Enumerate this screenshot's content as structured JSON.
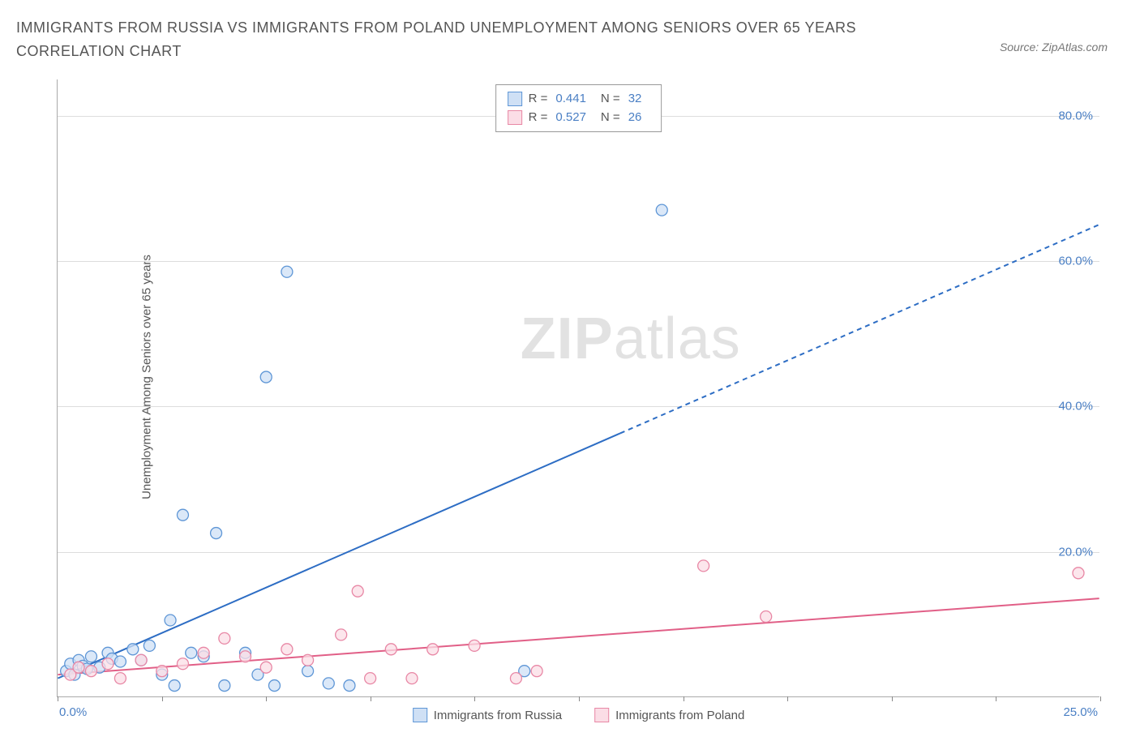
{
  "title": "IMMIGRANTS FROM RUSSIA VS IMMIGRANTS FROM POLAND UNEMPLOYMENT AMONG SENIORS OVER 65 YEARS CORRELATION CHART",
  "source_label": "Source: ZipAtlas.com",
  "y_axis_label": "Unemployment Among Seniors over 65 years",
  "watermark_bold": "ZIP",
  "watermark_rest": "atlas",
  "chart": {
    "type": "scatter",
    "xlim": [
      0,
      25
    ],
    "ylim": [
      0,
      85
    ],
    "x_tick_positions": [
      0,
      2.5,
      5,
      7.5,
      10,
      12.5,
      15,
      17.5,
      20,
      22.5,
      25
    ],
    "x_tick_labels": {
      "0": "0.0%",
      "25": "25.0%"
    },
    "y_grid_positions": [
      20,
      40,
      60,
      80
    ],
    "y_tick_labels": {
      "20": "20.0%",
      "40": "40.0%",
      "60": "60.0%",
      "80": "80.0%"
    },
    "background_color": "#ffffff",
    "grid_color": "#dddddd",
    "axis_color": "#aaaaaa",
    "tick_label_color": "#4a7fc4",
    "marker_radius": 7,
    "marker_stroke_width": 1.3,
    "line_width": 2,
    "dash_pattern": "6,5",
    "series": [
      {
        "name": "Immigrants from Russia",
        "legend_label": "Immigrants from Russia",
        "r_label": "R =",
        "r_value": "0.441",
        "n_label": "N =",
        "n_value": "32",
        "fill": "#cfe0f5",
        "stroke": "#5e96d6",
        "line_color": "#2d6dc4",
        "trend": {
          "x1": 0,
          "y1": 2.5,
          "x2": 25,
          "y2": 65,
          "dash_from_x": 13.5
        },
        "points": [
          [
            0.2,
            3.5
          ],
          [
            0.3,
            4.5
          ],
          [
            0.4,
            3.0
          ],
          [
            0.5,
            5.0
          ],
          [
            0.6,
            4.2
          ],
          [
            0.7,
            3.8
          ],
          [
            0.8,
            5.5
          ],
          [
            1.0,
            4.0
          ],
          [
            1.2,
            6.0
          ],
          [
            1.3,
            5.2
          ],
          [
            1.5,
            4.8
          ],
          [
            1.8,
            6.5
          ],
          [
            2.0,
            5.0
          ],
          [
            2.2,
            7.0
          ],
          [
            2.5,
            3.0
          ],
          [
            2.7,
            10.5
          ],
          [
            2.8,
            1.5
          ],
          [
            3.0,
            25.0
          ],
          [
            3.2,
            6.0
          ],
          [
            3.5,
            5.5
          ],
          [
            3.8,
            22.5
          ],
          [
            4.0,
            1.5
          ],
          [
            4.5,
            6.0
          ],
          [
            4.8,
            3.0
          ],
          [
            5.0,
            44.0
          ],
          [
            5.2,
            1.5
          ],
          [
            5.5,
            58.5
          ],
          [
            6.0,
            3.5
          ],
          [
            6.5,
            1.8
          ],
          [
            7.0,
            1.5
          ],
          [
            11.2,
            3.5
          ],
          [
            14.5,
            67.0
          ]
        ]
      },
      {
        "name": "Immigrants from Poland",
        "legend_label": "Immigrants from Poland",
        "r_label": "R =",
        "r_value": "0.527",
        "n_label": "N =",
        "n_value": "26",
        "fill": "#fbdde6",
        "stroke": "#e887a5",
        "line_color": "#e15f87",
        "trend": {
          "x1": 0,
          "y1": 3.0,
          "x2": 25,
          "y2": 13.5,
          "dash_from_x": 25
        },
        "points": [
          [
            0.3,
            3.0
          ],
          [
            0.5,
            4.0
          ],
          [
            0.8,
            3.5
          ],
          [
            1.2,
            4.5
          ],
          [
            1.5,
            2.5
          ],
          [
            2.0,
            5.0
          ],
          [
            2.5,
            3.5
          ],
          [
            3.0,
            4.5
          ],
          [
            3.5,
            6.0
          ],
          [
            4.0,
            8.0
          ],
          [
            4.5,
            5.5
          ],
          [
            5.0,
            4.0
          ],
          [
            5.5,
            6.5
          ],
          [
            6.0,
            5.0
          ],
          [
            6.8,
            8.5
          ],
          [
            7.2,
            14.5
          ],
          [
            7.5,
            2.5
          ],
          [
            8.0,
            6.5
          ],
          [
            8.5,
            2.5
          ],
          [
            9.0,
            6.5
          ],
          [
            10.0,
            7.0
          ],
          [
            11.0,
            2.5
          ],
          [
            11.5,
            3.5
          ],
          [
            15.5,
            18.0
          ],
          [
            17.0,
            11.0
          ],
          [
            24.5,
            17.0
          ]
        ]
      }
    ]
  },
  "bottom_legend": [
    {
      "label": "Immigrants from Russia",
      "fill": "#cfe0f5",
      "stroke": "#5e96d6"
    },
    {
      "label": "Immigrants from Poland",
      "fill": "#fbdde6",
      "stroke": "#e887a5"
    }
  ]
}
